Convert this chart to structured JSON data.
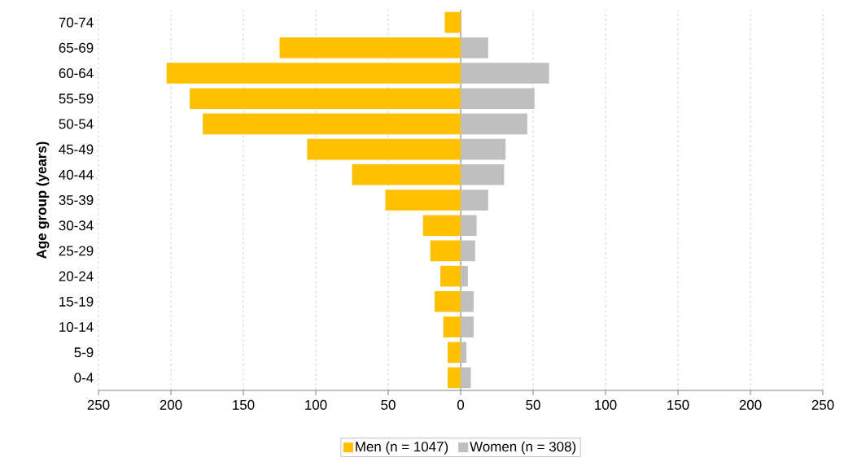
{
  "chart_data": {
    "type": "bar",
    "orientation": "horizontal",
    "ylabel": "Age group (years)",
    "categories": [
      "70-74",
      "65-69",
      "60-64",
      "55-59",
      "50-54",
      "45-49",
      "40-44",
      "35-39",
      "30-34",
      "25-29",
      "20-24",
      "15-19",
      "10-14",
      "5-9",
      "0-4"
    ],
    "series": [
      {
        "name": "Men (n = 1047)",
        "color": "#ffc000",
        "values": [
          -11,
          -125,
          -203,
          -187,
          -178,
          -106,
          -75,
          -52,
          -26,
          -21,
          -14,
          -18,
          -12,
          -9,
          -9
        ]
      },
      {
        "name": "Women (n = 308)",
        "color": "#bfbfbf",
        "values": [
          0,
          19,
          61,
          51,
          46,
          31,
          30,
          19,
          11,
          10,
          5,
          9,
          9,
          4,
          7
        ]
      }
    ],
    "xlim": [
      -250,
      250
    ],
    "xticks": [
      {
        "value": -250,
        "label": "250"
      },
      {
        "value": -200,
        "label": "200"
      },
      {
        "value": -150,
        "label": "150"
      },
      {
        "value": -100,
        "label": "100"
      },
      {
        "value": -50,
        "label": "50"
      },
      0,
      50,
      100,
      150,
      200,
      250
    ],
    "grid": "x",
    "legend": "bottom",
    "stacked": true
  }
}
